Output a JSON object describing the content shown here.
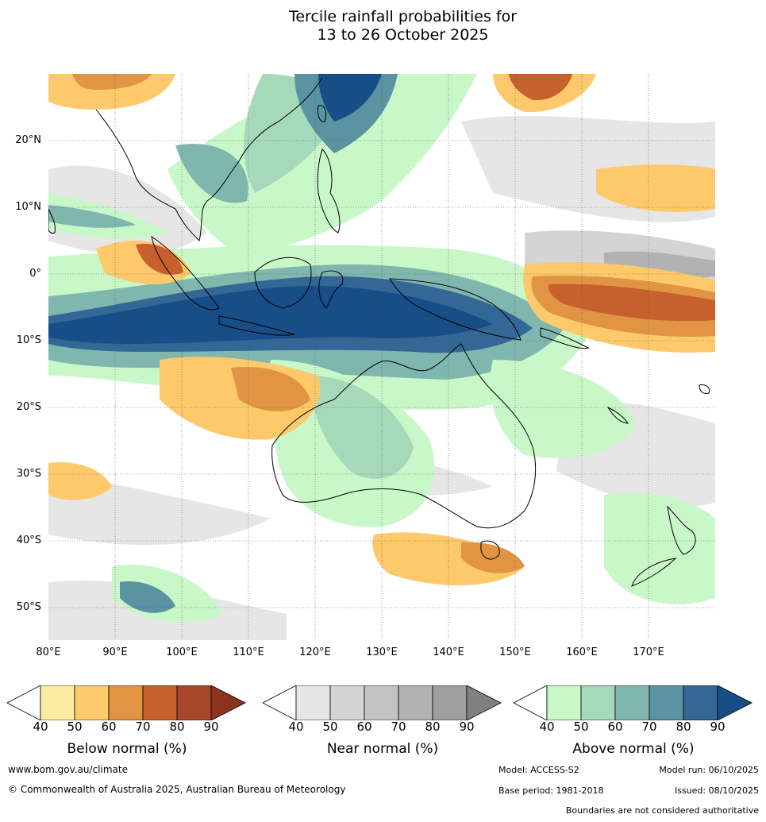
{
  "title": {
    "line1": "Tercile rainfall probabilities for",
    "line2": "13 to 26 October 2025"
  },
  "map": {
    "lat_labels": [
      "20°N",
      "10°N",
      "0°",
      "10°S",
      "20°S",
      "30°S",
      "40°S",
      "50°S"
    ],
    "lon_labels": [
      "80°E",
      "90°E",
      "100°E",
      "110°E",
      "120°E",
      "130°E",
      "140°E",
      "150°E",
      "160°E",
      "170°E"
    ],
    "lat_range": [
      30,
      -55
    ],
    "lon_range": [
      80,
      180
    ]
  },
  "colorbars": [
    {
      "label": "Below normal (%)",
      "ticks": [
        "40",
        "50",
        "60",
        "70",
        "80",
        "90"
      ],
      "colors": [
        "#ffffff",
        "#feeba2",
        "#fdc96a",
        "#e09444",
        "#c8602e",
        "#a8462a",
        "#8c3220"
      ]
    },
    {
      "label": "Near normal (%)",
      "ticks": [
        "40",
        "50",
        "60",
        "70",
        "80",
        "90"
      ],
      "colors": [
        "#ffffff",
        "#e6e6e6",
        "#d4d4d4",
        "#c3c3c3",
        "#b2b2b2",
        "#9f9f9f",
        "#808080"
      ]
    },
    {
      "label": "Above normal (%)",
      "ticks": [
        "40",
        "50",
        "60",
        "70",
        "80",
        "90"
      ],
      "colors": [
        "#ffffff",
        "#c8f7c8",
        "#a6d9b9",
        "#7fb6ae",
        "#5a93a2",
        "#336795",
        "#184e87"
      ]
    }
  ],
  "footer": {
    "website": "www.bom.gov.au/climate",
    "copyright": "© Commonwealth of Australia 2025, Australian Bureau of Meteorology",
    "model": "Model: ACCESS-S2",
    "model_run": "Model run: 06/10/2025",
    "base_period": "Base period: 1981-2018",
    "issued": "Issued: 08/10/2025",
    "disclaimer": "Boundaries are not considered authoritative"
  }
}
